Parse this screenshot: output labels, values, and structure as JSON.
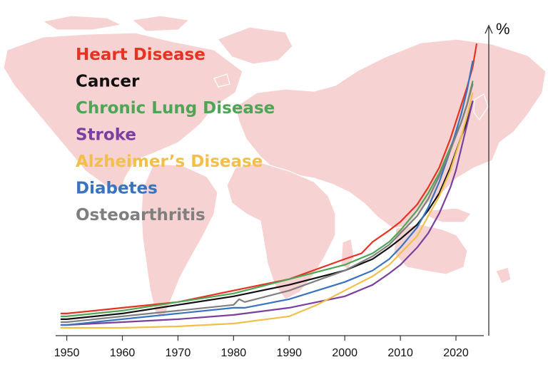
{
  "chart_data": {
    "type": "line",
    "title": "",
    "xlabel": "",
    "ylabel": "%",
    "xlim": [
      1948,
      2025
    ],
    "ylim": [
      0,
      100
    ],
    "x_ticks": [
      1950,
      1960,
      1970,
      1980,
      1990,
      2000,
      2010,
      2020
    ],
    "y_tick_labels": false,
    "grid": false,
    "legend": "top-left",
    "background": "world-map",
    "series": [
      {
        "name": "Heart Disease",
        "color": "#e53323",
        "x": [
          1949,
          1950,
          1960,
          1970,
          1980,
          1990,
          2000,
          2003,
          2005,
          2008,
          2010,
          2013,
          2015,
          2017,
          2019,
          2021,
          2022,
          2023,
          2023.7
        ],
        "y": [
          5,
          5,
          7,
          9,
          13,
          17,
          24,
          26,
          30,
          34,
          37,
          43,
          49,
          56,
          66,
          78,
          84,
          91,
          99
        ]
      },
      {
        "name": "Cancer",
        "color": "#111111",
        "x": [
          1949,
          1950,
          1960,
          1970,
          1980,
          1990,
          2000,
          2005,
          2008,
          2010,
          2013,
          2015,
          2017,
          2019,
          2021,
          2022,
          2023
        ],
        "y": [
          3,
          3,
          5,
          8,
          11,
          15,
          20,
          24,
          28,
          31,
          36,
          41,
          47,
          56,
          67,
          72,
          79
        ]
      },
      {
        "name": "Chronic Lung Disease",
        "color": "#4da555",
        "x": [
          1949,
          1950,
          1960,
          1970,
          1980,
          1990,
          2000,
          2005,
          2008,
          2010,
          2013,
          2015,
          2017,
          2019,
          2021,
          2022,
          2023
        ],
        "y": [
          4,
          4,
          6,
          9,
          12,
          17,
          22,
          26,
          30,
          34,
          41,
          47,
          54,
          63,
          72,
          78,
          86
        ]
      },
      {
        "name": "Stroke",
        "color": "#7b3fa0",
        "x": [
          1949,
          1950,
          1960,
          1970,
          1980,
          1990,
          2000,
          2005,
          2008,
          2010,
          2013,
          2015,
          2017,
          2019,
          2020,
          2021,
          2022,
          2023
        ],
        "y": [
          1,
          1,
          2,
          3,
          4.5,
          7,
          11,
          15,
          19,
          22,
          28,
          33,
          40,
          49,
          55,
          63,
          71,
          79
        ]
      },
      {
        "name": "Alzheimer’s Disease",
        "color": "#f2c04a",
        "x": [
          1949,
          1950,
          1960,
          1970,
          1980,
          1990,
          1995,
          2000,
          2005,
          2008,
          2010,
          2013,
          2015,
          2017,
          2019,
          2021,
          2022,
          2023
        ],
        "y": [
          0,
          0,
          0,
          0.5,
          1.5,
          4,
          8,
          13,
          18,
          22,
          26,
          32,
          39,
          46,
          55,
          67,
          74,
          82
        ]
      },
      {
        "name": "Diabetes",
        "color": "#3a73be",
        "x": [
          1949,
          1950,
          1960,
          1970,
          1980,
          1982,
          1990,
          2000,
          2005,
          2008,
          2010,
          2013,
          2015,
          2017,
          2019,
          2021,
          2022,
          2023
        ],
        "y": [
          1,
          1,
          3,
          5,
          7,
          7,
          10,
          16,
          20,
          24,
          28,
          35,
          42,
          51,
          62,
          75,
          83,
          93
        ]
      },
      {
        "name": "Osteoarthritis",
        "color": "#7f7f7f",
        "x": [
          1949,
          1950,
          1960,
          1970,
          1980,
          1981,
          1982,
          1990,
          2000,
          2005,
          2008,
          2010,
          2013,
          2015,
          2017,
          2019,
          2021,
          2022,
          2023
        ],
        "y": [
          2,
          2,
          4,
          6,
          8,
          10,
          9,
          13,
          20,
          25,
          29,
          33,
          39,
          45,
          53,
          62,
          72,
          78,
          85
        ]
      }
    ]
  }
}
